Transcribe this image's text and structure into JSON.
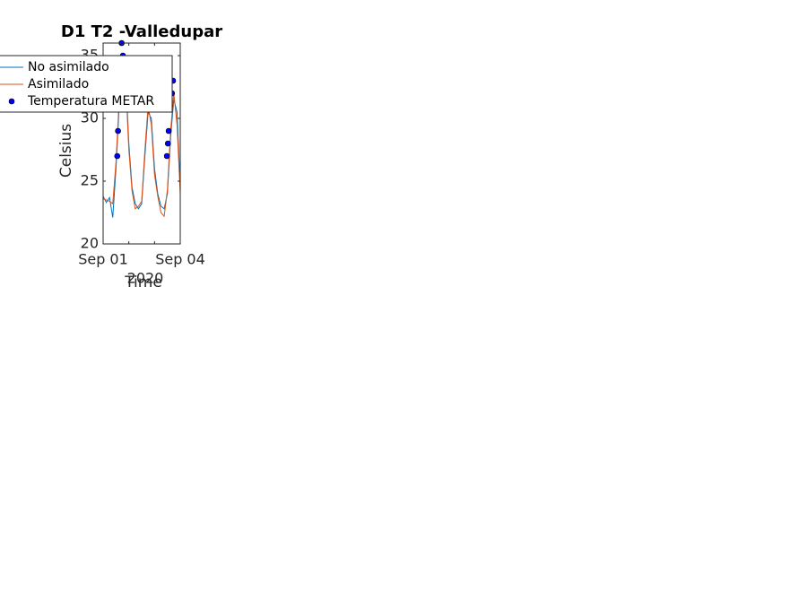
{
  "chart_data": {
    "type": "line",
    "title": "D1 T2  -Valledupar",
    "ylabel": "Celsius",
    "xlabel": "Time",
    "xsublabel": "2020",
    "x": [
      0,
      0.125,
      0.25,
      0.375,
      0.5,
      0.625,
      0.75,
      0.875,
      1,
      1.125,
      1.25,
      1.375,
      1.5,
      1.625,
      1.75,
      1.875,
      2,
      2.125,
      2.25,
      2.375,
      2.5,
      2.625,
      2.75,
      2.875,
      3
    ],
    "series": [
      {
        "name": "No asimilado",
        "color": "#0072bd",
        "values": [
          23.8,
          23.3,
          23.7,
          22.1,
          26,
          31,
          34.5,
          33.5,
          28,
          24.5,
          23.2,
          22.8,
          23.2,
          27,
          30.5,
          30,
          26,
          24,
          23,
          22.8,
          24,
          28.5,
          31.5,
          30.5,
          24.5
        ]
      },
      {
        "name": "Asimilado",
        "color": "#d95319",
        "values": [
          23.6,
          23.5,
          23.4,
          23.2,
          26.5,
          31.5,
          35,
          33,
          27.5,
          24.2,
          22.8,
          23,
          23.4,
          27.5,
          31,
          29.5,
          25.5,
          23.8,
          22.5,
          22.2,
          24.3,
          29,
          32,
          29.5,
          24
        ]
      },
      {
        "name": "Temperatura METAR",
        "type": "scatter",
        "color": "#0000ff",
        "x": [
          0.55,
          0.58,
          0.72,
          0.77,
          2.48,
          2.52,
          2.55,
          2.6,
          2.68,
          2.72
        ],
        "values": [
          27,
          29,
          36,
          35,
          27,
          28,
          29,
          31,
          32,
          33
        ]
      }
    ],
    "xlim": [
      0,
      3
    ],
    "xticks": [
      {
        "value": 0,
        "label": "Sep 01"
      },
      {
        "value": 1,
        "label": null
      },
      {
        "value": 2,
        "label": null
      },
      {
        "value": 3,
        "label": "Sep 04"
      }
    ],
    "ylim": [
      20,
      36
    ],
    "yticks": [
      20,
      25,
      30,
      35
    ],
    "legend": "upper-left"
  }
}
